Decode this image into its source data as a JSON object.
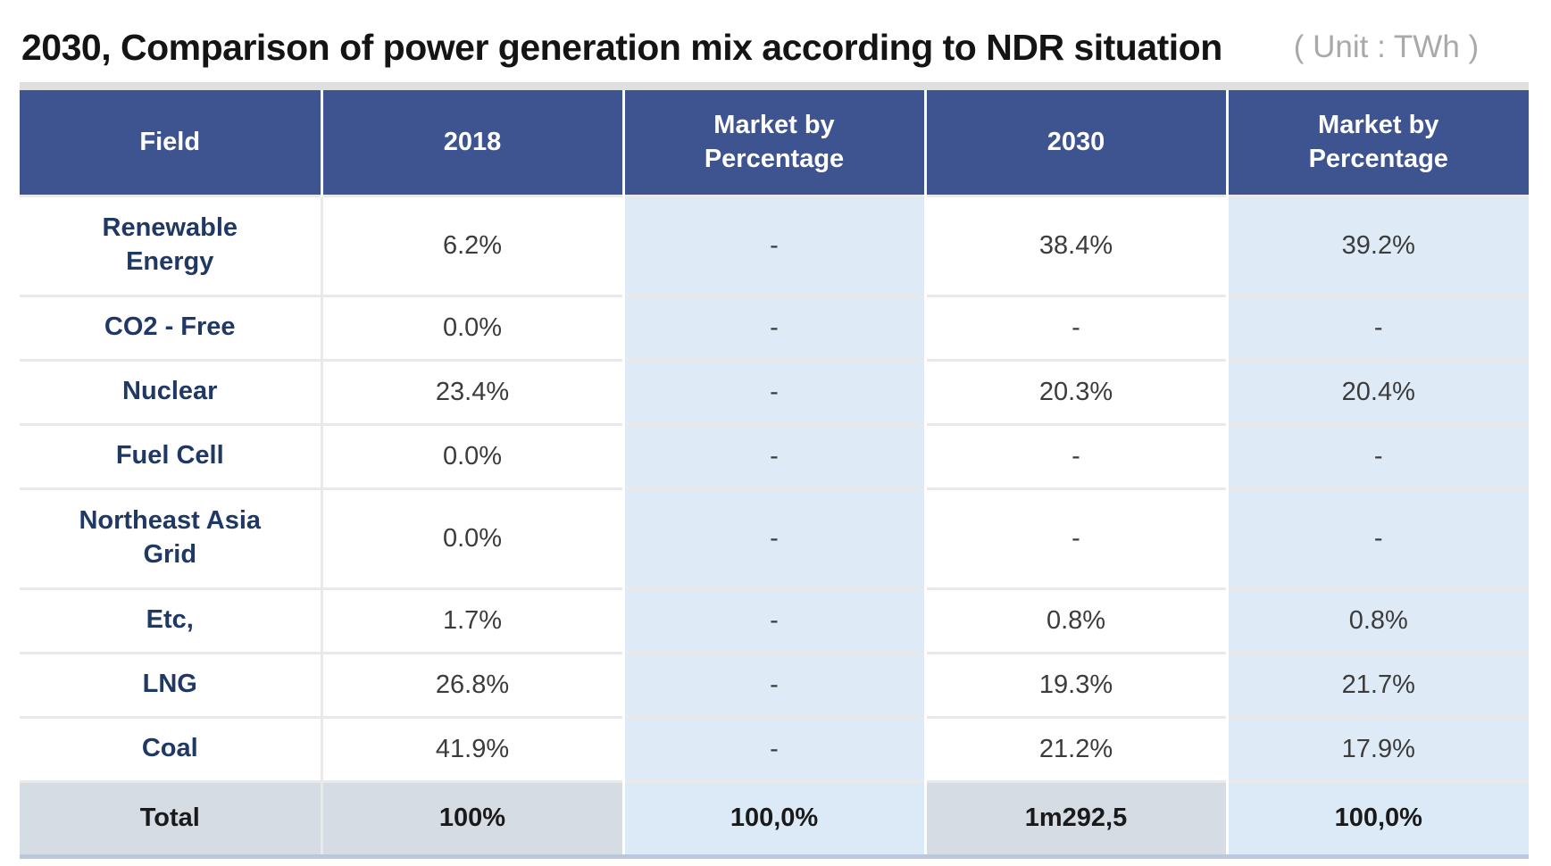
{
  "title": "2030, Comparison of power generation mix according to NDR situation",
  "unit_label": "( Unit : TWh )",
  "table": {
    "columns": [
      "Field",
      "2018",
      "Market by Percentage",
      "2030",
      "Market by Percentage"
    ],
    "rows": [
      {
        "field": "Renewable Energy",
        "y2018": "6.2%",
        "m2018": "-",
        "y2030": "38.4%",
        "m2030": "39.2%"
      },
      {
        "field": "CO2 - Free",
        "y2018": "0.0%",
        "m2018": "-",
        "y2030": "-",
        "m2030": "-"
      },
      {
        "field": "Nuclear",
        "y2018": "23.4%",
        "m2018": "-",
        "y2030": "20.3%",
        "m2030": "20.4%"
      },
      {
        "field": "Fuel Cell",
        "y2018": "0.0%",
        "m2018": "-",
        "y2030": "-",
        "m2030": "-"
      },
      {
        "field": "Northeast Asia Grid",
        "y2018": "0.0%",
        "m2018": "-",
        "y2030": "-",
        "m2030": "-"
      },
      {
        "field": "Etc,",
        "y2018": "1.7%",
        "m2018": "-",
        "y2030": "0.8%",
        "m2030": "0.8%"
      },
      {
        "field": "LNG",
        "y2018": "26.8%",
        "m2018": "-",
        "y2030": "19.3%",
        "m2030": "21.7%"
      },
      {
        "field": "Coal",
        "y2018": "41.9%",
        "m2018": "-",
        "y2030": "21.2%",
        "m2030": "17.9%"
      }
    ],
    "total_row": {
      "field": "Total",
      "y2018": "100%",
      "m2018": "100,0%",
      "y2030": "1m292,5",
      "m2030": "100,0%"
    }
  },
  "colors": {
    "header_bg": "#3E5491",
    "header_text": "#FFFFFF",
    "light_col_bg": "#DEEBF7",
    "total_light_col_bg": "#DCE9F6",
    "total_row_bg": "#D6DCE4",
    "field_text": "#1F3864",
    "value_text": "#3C3C3C",
    "total_text": "#1A1A1A",
    "title_text": "#141414",
    "unit_text": "#A9A9A9",
    "top_border": "#DFDFDF",
    "bottom_border": "#B9C8DE",
    "grid_line": "#E9E9E9"
  }
}
